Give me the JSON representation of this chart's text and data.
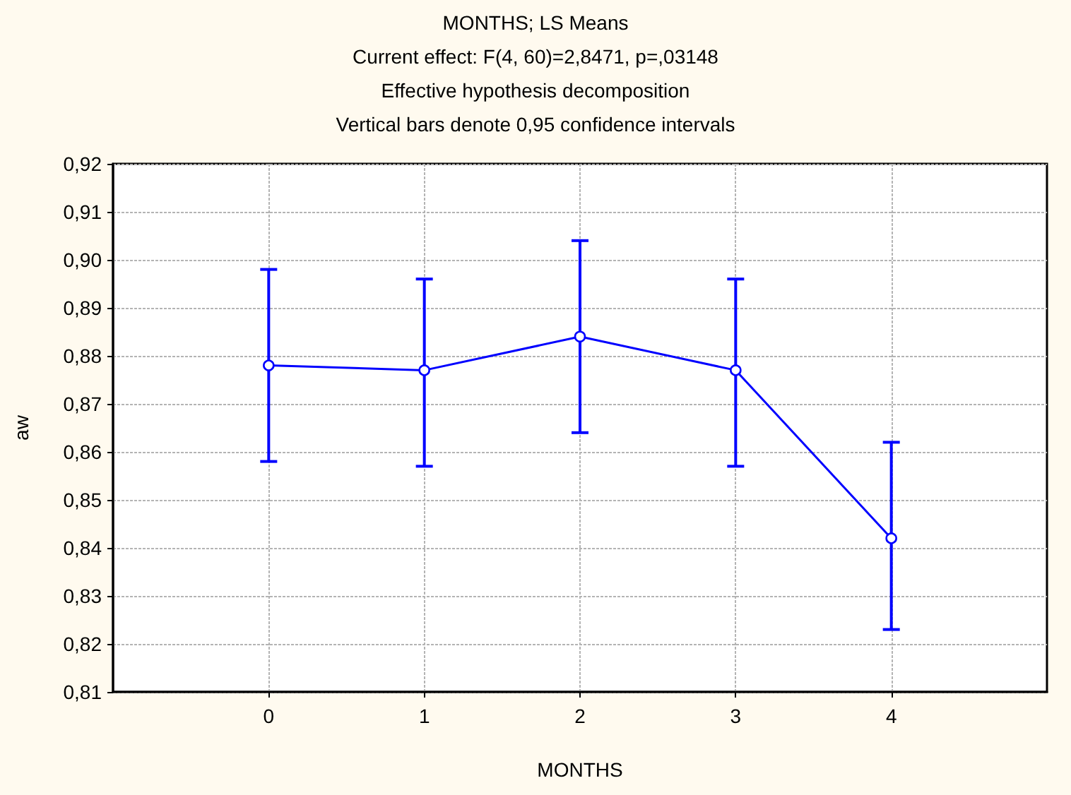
{
  "chart_data": {
    "type": "line",
    "title": "MONTHS; LS Means",
    "subtitle": "Current effect: F(4, 60)=2,8471, p=,03148",
    "annotations": [
      "Effective hypothesis decomposition",
      "Vertical bars denote 0,95 confidence intervals"
    ],
    "xlabel": "MONTHS",
    "ylabel": "aw",
    "x": [
      0,
      1,
      2,
      3,
      4
    ],
    "values": [
      0.878,
      0.877,
      0.884,
      0.877,
      0.842
    ],
    "errors": [
      [
        0.858,
        0.898
      ],
      [
        0.857,
        0.896
      ],
      [
        0.864,
        0.904
      ],
      [
        0.857,
        0.896
      ],
      [
        0.823,
        0.862
      ]
    ],
    "color": "#0000ff",
    "xlim": [
      -1,
      5
    ],
    "xticks": [
      0,
      1,
      2,
      3,
      4
    ],
    "ylim": [
      0.81,
      0.92
    ],
    "yticks": [
      {
        "value": 0.81,
        "label": "0,81"
      },
      {
        "value": 0.82,
        "label": "0,82"
      },
      {
        "value": 0.83,
        "label": "0,83"
      },
      {
        "value": 0.84,
        "label": "0,84"
      },
      {
        "value": 0.85,
        "label": "0,85"
      },
      {
        "value": 0.86,
        "label": "0,86"
      },
      {
        "value": 0.87,
        "label": "0,87"
      },
      {
        "value": 0.88,
        "label": "0,88"
      },
      {
        "value": 0.89,
        "label": "0,89"
      },
      {
        "value": 0.9,
        "label": "0,90"
      },
      {
        "value": 0.91,
        "label": "0,91"
      },
      {
        "value": 0.92,
        "label": "0,92"
      }
    ],
    "grid": true,
    "marker": "circle",
    "line_style": "solid"
  }
}
